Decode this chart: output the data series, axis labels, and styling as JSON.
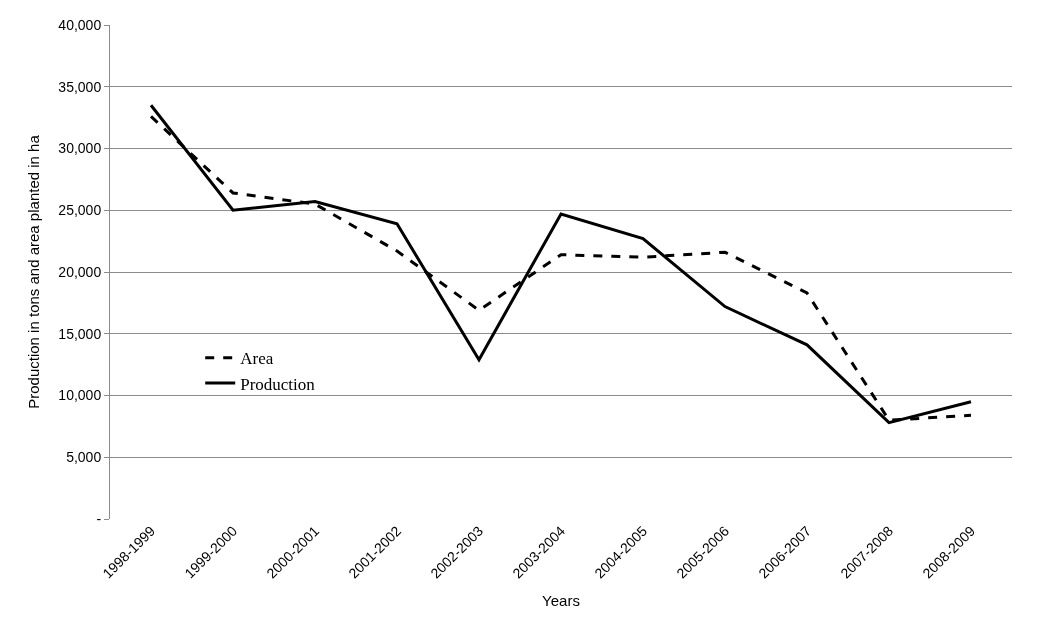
{
  "chart_data": {
    "type": "line",
    "xlabel": "Years",
    "ylabel": "Production in tons and area planted in ha",
    "categories": [
      "1998-1999",
      "1999-2000",
      "2000-2001",
      "2001-2002",
      "2002-2003",
      "2003-2004",
      "2004-2005",
      "2005-2006",
      "2006-2007",
      "2007-2008",
      "2008-2009"
    ],
    "series": [
      {
        "name": "Area",
        "color": "#000000",
        "line_style": "dashed",
        "values": [
          32600,
          26400,
          25500,
          21700,
          16900,
          21400,
          21200,
          21600,
          18300,
          8000,
          8400
        ]
      },
      {
        "name": "Production",
        "color": "#000000",
        "line_style": "solid",
        "values": [
          33500,
          25000,
          25700,
          23900,
          12900,
          24700,
          22700,
          17200,
          14100,
          7800,
          9500
        ]
      }
    ],
    "ylim": [
      0,
      40000
    ],
    "yticks": [
      {
        "value": 0,
        "label": "-"
      },
      {
        "value": 5000,
        "label": "5,000"
      },
      {
        "value": 10000,
        "label": "10,000"
      },
      {
        "value": 15000,
        "label": "15,000"
      },
      {
        "value": 20000,
        "label": "20,000"
      },
      {
        "value": 25000,
        "label": "25,000"
      },
      {
        "value": 30000,
        "label": "30,000"
      },
      {
        "value": 35000,
        "label": "35,000"
      },
      {
        "value": 40000,
        "label": "40,000"
      }
    ],
    "grid": "y",
    "legend": "left",
    "marker": "none"
  }
}
